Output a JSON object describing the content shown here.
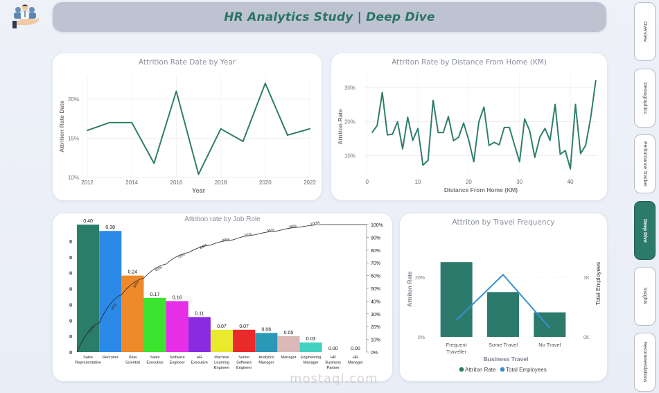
{
  "header": {
    "title": "HR Analytics Study | Deep Dive"
  },
  "nav": {
    "items": [
      {
        "label": "Overview",
        "active": false
      },
      {
        "label": "Demographics",
        "active": false
      },
      {
        "label": "Performance Tracker",
        "active": false
      },
      {
        "label": "Deep Dive",
        "active": true
      },
      {
        "label": "Insights",
        "active": false
      },
      {
        "label": "Recommendations",
        "active": false
      }
    ]
  },
  "icons": {
    "logo": "hr-people-hand-icon"
  },
  "colors": {
    "accent": "#2b7a6c",
    "line": "#2e7d6b",
    "travel_line": "#3a8fd0",
    "header_bg": "#bec3d2"
  },
  "watermark": "mostaql.com",
  "chart_data": [
    {
      "id": "year",
      "type": "line",
      "title": "Attrition Rate Date by Year",
      "xlabel": "Year",
      "ylabel": "Attrition Rate Date",
      "x": [
        2012,
        2013,
        2014,
        2015,
        2016,
        2017,
        2018,
        2019,
        2020,
        2021,
        2022
      ],
      "values": [
        16.0,
        17.0,
        17.0,
        11.8,
        21.0,
        10.4,
        16.2,
        14.6,
        22.0,
        15.4,
        16.2
      ],
      "x_ticks": [
        "2012",
        "2014",
        "2016",
        "2018",
        "2020",
        "2022"
      ],
      "y_ticks": [
        "10%",
        "15%",
        "20%"
      ],
      "ylim": [
        10,
        23
      ],
      "grid": true
    },
    {
      "id": "distance",
      "type": "line",
      "title": "Attriton Rate by Distance From Home (KM)",
      "xlabel": "Distance From Home (KM)",
      "ylabel": "Attriton Rate",
      "x": [
        1,
        2,
        3,
        4,
        5,
        6,
        7,
        8,
        9,
        10,
        11,
        12,
        13,
        14,
        15,
        16,
        17,
        18,
        19,
        20,
        21,
        22,
        23,
        24,
        25,
        26,
        27,
        28,
        29,
        30,
        31,
        32,
        33,
        34,
        35,
        36,
        37,
        38,
        39,
        40,
        41,
        42,
        43,
        44,
        45
      ],
      "values": [
        16.8,
        18.9,
        28.6,
        16.1,
        16.3,
        20.0,
        12.0,
        21.3,
        14.5,
        18.0,
        7.2,
        8.6,
        26.3,
        16.8,
        16.8,
        21.5,
        14.4,
        15.4,
        19.6,
        14.6,
        8.2,
        20.0,
        24.3,
        13.0,
        13.9,
        13.2,
        18.3,
        18.3,
        13.2,
        8.2,
        20.8,
        17.3,
        9.5,
        15.5,
        18.0,
        14.5,
        25.1,
        10.4,
        11.5,
        6.1,
        25.1,
        10.6,
        13.0,
        21.2,
        32.2
      ],
      "x_ticks": [
        "0",
        "10",
        "20",
        "30",
        "40"
      ],
      "y_ticks": [
        "10%",
        "20%",
        "30%"
      ],
      "xlim": [
        -1,
        45
      ],
      "ylim": [
        5,
        34
      ],
      "grid": true
    },
    {
      "id": "jobrole",
      "type": "bar",
      "title": "Attrition rate by Job Role",
      "categories": [
        "Sales Representative",
        "Recruiter",
        "Data Scientist",
        "Sales Executive",
        "Software Engineer",
        "HR Executive",
        "Machine Learning Engineer",
        "Senior Software Engineer",
        "Analytics Manager",
        "Manager",
        "Engineering Manager",
        "HR Business Partner",
        "HR Manager"
      ],
      "category_lines": [
        [
          "Sales",
          "Representative"
        ],
        [
          "Recruiter"
        ],
        [
          "Data",
          "Scientist"
        ],
        [
          "Sales",
          "Executive"
        ],
        [
          "Software",
          "Engineer"
        ],
        [
          "HR",
          "Executive"
        ],
        [
          "Machine",
          "Learning",
          "Engineer"
        ],
        [
          "Senior",
          "Software",
          "Engineer"
        ],
        [
          "Analytics",
          "Manager"
        ],
        [
          "Manager"
        ],
        [
          "Engineering",
          "Manager"
        ],
        [
          "HR",
          "Business",
          "Partner"
        ],
        [
          "HR",
          "Manager"
        ]
      ],
      "values": [
        0.4,
        0.38,
        0.24,
        0.17,
        0.16,
        0.11,
        0.07,
        0.07,
        0.06,
        0.05,
        0.03,
        0.0,
        0.0
      ],
      "value_labels": [
        "0.40",
        "0.38",
        "0.24",
        "0.17",
        "0.16",
        "0.11",
        "0.07",
        "0.07",
        "0.06",
        "0.05",
        "0.03",
        "0.00",
        "0.00"
      ],
      "bar_colors": [
        "#2a7d69",
        "#2b8ae8",
        "#ee8a2a",
        "#3be52f",
        "#e62ee6",
        "#8a2be2",
        "#e9e92e",
        "#e82a2a",
        "#2a98b6",
        "#dbb9b9",
        "#44d0c0",
        "#cccccc",
        "#cccccc"
      ],
      "cumulative_pct": [
        23,
        45,
        58,
        69,
        78,
        84,
        88,
        92,
        95,
        98,
        100,
        100,
        100
      ],
      "cumulative_labels": [
        "23%",
        "45%",
        "58%",
        "69%",
        "78%",
        "84%",
        "88%",
        "92%",
        "95%",
        "98%",
        "100%"
      ],
      "left_axis_ticks": [
        "0",
        "0",
        "0",
        "0",
        "0",
        "0",
        "0",
        "0"
      ],
      "right_axis_ticks": [
        "0%",
        "10%",
        "20%",
        "30%",
        "40%",
        "50%",
        "60%",
        "70%",
        "80%",
        "90%",
        "100%"
      ],
      "ylim": [
        0,
        0.4
      ]
    },
    {
      "id": "travel",
      "type": "bar",
      "title": "Attriton by Travel Frequency",
      "xlabel": "Business Travel",
      "ylabel": "Attriton Rate",
      "y2label": "Total Employees",
      "categories": [
        "Frequent Traveller",
        "Some Travel",
        "No Travel"
      ],
      "category_lines": [
        [
          "Frequent",
          "Traveller"
        ],
        [
          "Some Travel"
        ],
        [
          "No Travel"
        ]
      ],
      "series": [
        {
          "name": "Attriton Rate",
          "type": "bar",
          "values": [
            25.0,
            15.0,
            8.2
          ],
          "unit": "%"
        },
        {
          "name": "Total Employees",
          "type": "line",
          "values": [
            280,
            1040,
            150
          ],
          "unit": "count"
        }
      ],
      "y_ticks": [
        "0%",
        "20%"
      ],
      "y2_ticks": [
        "0K",
        "1K"
      ],
      "ylim": [
        0,
        32
      ],
      "y2lim": [
        0,
        1600
      ],
      "legend": "bottom-center"
    }
  ]
}
